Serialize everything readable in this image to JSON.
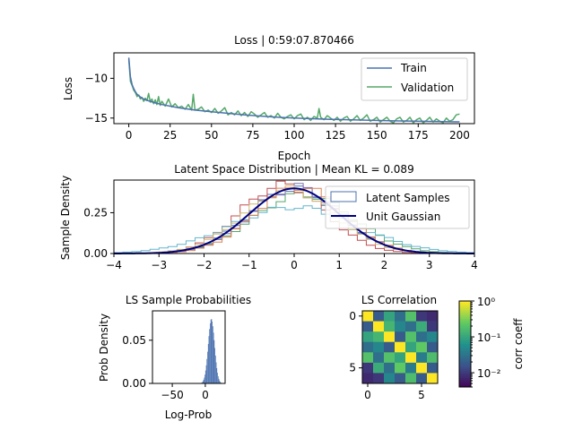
{
  "figure": {
    "background": "#ffffff"
  },
  "chart_data": [
    {
      "id": "loss",
      "type": "line",
      "title": "Loss | 0:59:07.870466",
      "xlabel": "Epoch",
      "ylabel": "Loss",
      "xlim": [
        -9,
        209
      ],
      "ylim": [
        -15.7,
        -6.8
      ],
      "xticks": [
        0,
        25,
        50,
        75,
        100,
        125,
        150,
        175,
        200
      ],
      "yticks": [
        -15,
        -10
      ],
      "ytick_labels": [
        "−15",
        "−10"
      ],
      "legend_position": "upper right",
      "series": [
        {
          "name": "Train",
          "color": "#4c72b0",
          "x": [
            0,
            1,
            2,
            3,
            4,
            5,
            6,
            8,
            10,
            13,
            16,
            20,
            25,
            30,
            40,
            50,
            60,
            70,
            80,
            90,
            100,
            120,
            140,
            160,
            180,
            200
          ],
          "y": [
            -7.4,
            -9.8,
            -10.8,
            -11.3,
            -11.7,
            -12.0,
            -12.2,
            -12.5,
            -12.7,
            -12.9,
            -13.1,
            -13.3,
            -13.5,
            -13.7,
            -14.0,
            -14.2,
            -14.4,
            -14.6,
            -14.75,
            -14.9,
            -15.0,
            -15.15,
            -15.25,
            -15.35,
            -15.42,
            -15.48
          ]
        },
        {
          "name": "Validation",
          "color": "#55a868",
          "x": [
            0,
            1,
            2,
            3,
            4,
            5,
            6,
            7,
            8,
            9,
            10,
            11,
            12,
            13,
            14,
            15,
            16,
            17,
            18,
            19,
            20,
            22,
            24,
            26,
            28,
            30,
            32,
            34,
            36,
            38,
            39,
            40,
            42,
            44,
            46,
            48,
            50,
            52,
            54,
            56,
            58,
            60,
            62,
            64,
            66,
            68,
            70,
            72,
            74,
            76,
            78,
            80,
            82,
            84,
            86,
            88,
            90,
            92,
            94,
            96,
            98,
            100,
            102,
            104,
            106,
            108,
            110,
            112,
            114,
            115,
            116,
            118,
            120,
            122,
            124,
            126,
            128,
            130,
            132,
            134,
            136,
            138,
            140,
            142,
            144,
            146,
            148,
            150,
            152,
            154,
            156,
            158,
            160,
            162,
            164,
            166,
            168,
            170,
            172,
            174,
            176,
            178,
            180,
            182,
            184,
            186,
            188,
            190,
            192,
            194,
            196,
            198,
            200
          ],
          "y": [
            -7.6,
            -10.4,
            -10.9,
            -11.5,
            -11.8,
            -12.3,
            -12.1,
            -12.6,
            -12.4,
            -12.9,
            -12.5,
            -12.8,
            -11.9,
            -13.0,
            -12.6,
            -13.2,
            -12.7,
            -13.3,
            -12.3,
            -13.4,
            -12.9,
            -13.5,
            -12.6,
            -13.6,
            -13.2,
            -13.7,
            -13.5,
            -13.9,
            -13.3,
            -14.0,
            -12.0,
            -14.0,
            -13.9,
            -13.6,
            -14.2,
            -14.0,
            -14.3,
            -13.8,
            -14.4,
            -14.1,
            -13.7,
            -14.6,
            -14.3,
            -14.6,
            -14.1,
            -14.7,
            -14.3,
            -14.8,
            -14.2,
            -14.5,
            -14.9,
            -14.6,
            -14.3,
            -14.9,
            -14.7,
            -15.0,
            -14.4,
            -14.9,
            -15.1,
            -14.8,
            -14.6,
            -15.1,
            -14.7,
            -14.5,
            -15.2,
            -14.9,
            -15.3,
            -14.8,
            -15.0,
            -13.8,
            -14.9,
            -15.2,
            -14.7,
            -15.0,
            -15.3,
            -14.9,
            -15.4,
            -15.0,
            -14.8,
            -15.4,
            -15.1,
            -14.7,
            -15.3,
            -15.0,
            -14.6,
            -15.4,
            -15.2,
            -14.9,
            -15.5,
            -15.2,
            -14.9,
            -15.4,
            -15.6,
            -15.1,
            -14.9,
            -15.5,
            -15.3,
            -14.9,
            -15.6,
            -15.2,
            -15.0,
            -15.6,
            -15.3,
            -14.9,
            -15.5,
            -15.1,
            -15.4,
            -15.6,
            -15.0,
            -15.4,
            -15.2,
            -14.6,
            -14.5
          ]
        }
      ]
    },
    {
      "id": "latent",
      "type": "area",
      "title": "Latent Space Distribution | Mean KL = 0.089",
      "ylabel": "Sample Density",
      "xlim": [
        -4,
        4
      ],
      "ylim": [
        0,
        0.45
      ],
      "xticks": [
        -4,
        -3,
        -2,
        -1,
        0,
        1,
        2,
        3,
        4
      ],
      "xtick_labels": [
        "−4",
        "−3",
        "−2",
        "−1",
        "0",
        "1",
        "2",
        "3",
        "4"
      ],
      "yticks": [
        0.0,
        0.25
      ],
      "ytick_labels": [
        "0.00",
        "0.25"
      ],
      "legend_position": "upper right",
      "legend": [
        {
          "label": "Latent Samples",
          "style": "box",
          "color": "#4c72b0"
        },
        {
          "label": "Unit Gaussian",
          "style": "line",
          "color": "#000080"
        }
      ],
      "hist_bin_width": 0.2,
      "hist_series": [
        {
          "color": "#4c72b0",
          "mu": 0.0,
          "sigma": 1.0
        },
        {
          "color": "#55a868",
          "mu": 0.2,
          "sigma": 1.1
        },
        {
          "color": "#c44e52",
          "mu": -0.25,
          "sigma": 0.95
        },
        {
          "color": "#64b5cd",
          "mu": 0.0,
          "sigma": 1.4
        },
        {
          "color": "#8172b2",
          "mu": 0.05,
          "sigma": 0.98
        },
        {
          "color": "#ccb974",
          "mu": -0.1,
          "sigma": 1.02
        },
        {
          "color": "#dd8452",
          "mu": 0.1,
          "sigma": 0.97
        }
      ],
      "reference_curve": {
        "name": "Unit Gaussian",
        "mu": 0,
        "sigma": 1,
        "color": "#000080"
      }
    },
    {
      "id": "probs",
      "type": "bar",
      "title": "LS Sample Probabilities",
      "xlabel": "Log-Prob",
      "ylabel": "Prob Density",
      "xlim": [
        -80,
        30
      ],
      "ylim": [
        0,
        0.084
      ],
      "xticks": [
        -50,
        0
      ],
      "xtick_labels": [
        "−50",
        "0"
      ],
      "yticks": [
        0.0,
        0.05
      ],
      "ytick_labels": [
        "0.00",
        "0.05"
      ],
      "color": "#4c72b0",
      "hist": {
        "mu": 9,
        "sigma": 5,
        "peak": 0.075,
        "bin_width": 1
      }
    },
    {
      "id": "corr",
      "type": "heatmap",
      "title": "LS Correlation",
      "xticks": [
        0,
        5
      ],
      "yticks": [
        0,
        5
      ],
      "colorbar_label": "corr coeff",
      "colorbar_scale": "log",
      "colorbar_range": [
        0.004,
        1
      ],
      "colorbar_tick_labels": [
        "10⁰",
        "10⁻¹",
        "10⁻²"
      ],
      "colorbar_tick_values": [
        1,
        0.1,
        0.01
      ],
      "matrix": [
        [
          1.0,
          0.02,
          0.1,
          0.03,
          0.2,
          0.01,
          0.008
        ],
        [
          0.02,
          1.0,
          0.15,
          0.05,
          0.03,
          0.12,
          0.01
        ],
        [
          0.1,
          0.15,
          1.0,
          0.02,
          0.2,
          0.03,
          0.05
        ],
        [
          0.03,
          0.05,
          0.02,
          1.0,
          0.1,
          0.25,
          0.02
        ],
        [
          0.2,
          0.03,
          0.2,
          0.1,
          1.0,
          0.04,
          0.18
        ],
        [
          0.01,
          0.12,
          0.03,
          0.25,
          0.04,
          1.0,
          0.02
        ],
        [
          0.008,
          0.01,
          0.05,
          0.02,
          0.18,
          0.02,
          1.0
        ]
      ]
    }
  ]
}
